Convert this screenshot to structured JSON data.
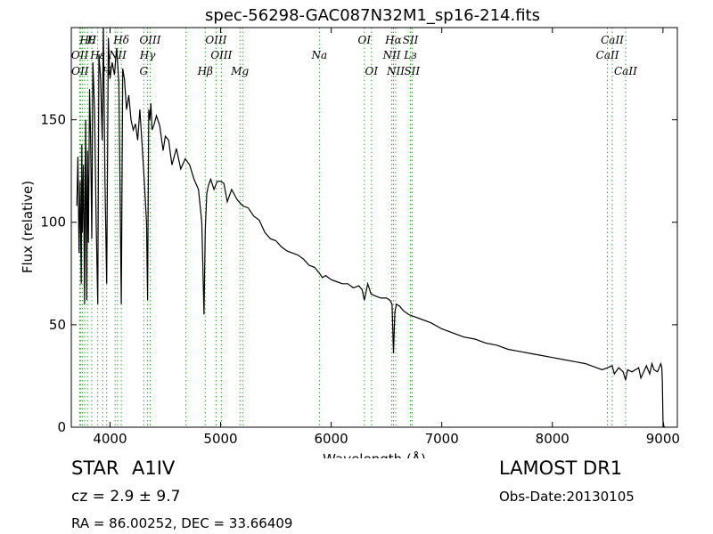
{
  "chart_data": {
    "type": "line",
    "title": "spec-56298-GAC087N32M1_sp16-214.fits",
    "xlabel": "Wavelength (Å)",
    "ylabel": "Flux (relative)",
    "xlim": [
      3650,
      9130
    ],
    "ylim": [
      0,
      195
    ],
    "xticks": [
      4000,
      5000,
      6000,
      7000,
      8000,
      9000
    ],
    "yticks": [
      0,
      50,
      100,
      150
    ],
    "grid": false,
    "line_color": "#000000",
    "marker_color": "#33aa33",
    "series": [
      {
        "x": [
          3700,
          3710,
          3720,
          3730,
          3740,
          3745,
          3750,
          3760,
          3770,
          3775,
          3780,
          3790,
          3797,
          3805,
          3815,
          3825,
          3835,
          3845,
          3860,
          3875,
          3889,
          3900,
          3915,
          3930,
          3940,
          3955,
          3970,
          3985,
          4000,
          4020,
          4040,
          4060,
          4080,
          4102,
          4115,
          4130,
          4150,
          4170,
          4190,
          4210,
          4230,
          4250,
          4270,
          4290,
          4310,
          4330,
          4340,
          4350,
          4360,
          4370,
          4380,
          4400,
          4420,
          4450,
          4480,
          4500,
          4530,
          4560,
          4600,
          4640,
          4680,
          4720,
          4760,
          4800,
          4830,
          4850,
          4861,
          4875,
          4890,
          4910,
          4940,
          4970,
          5000,
          5030,
          5060,
          5100,
          5150,
          5200,
          5250,
          5300,
          5350,
          5400,
          5450,
          5500,
          5550,
          5600,
          5650,
          5700,
          5750,
          5800,
          5850,
          5895,
          5920,
          5950,
          6000,
          6050,
          6100,
          6150,
          6200,
          6250,
          6280,
          6300,
          6330,
          6360,
          6400,
          6450,
          6500,
          6530,
          6550,
          6563,
          6575,
          6590,
          6620,
          6650,
          6700,
          6750,
          6800,
          6900,
          7000,
          7100,
          7200,
          7300,
          7400,
          7500,
          7600,
          7700,
          7800,
          7900,
          8000,
          8100,
          8200,
          8300,
          8400,
          8450,
          8500,
          8540,
          8560,
          8600,
          8640,
          8662,
          8680,
          8720,
          8780,
          8800,
          8850,
          8880,
          8900,
          8920,
          8950,
          8980,
          8990,
          8995,
          9000,
          9010,
          9020
        ],
        "y": [
          108,
          132,
          85,
          120,
          70,
          138,
          95,
          128,
          60,
          110,
          150,
          62,
          135,
          90,
          165,
          140,
          92,
          178,
          155,
          100,
          60,
          182,
          170,
          140,
          195,
          120,
          70,
          190,
          170,
          178,
          172,
          185,
          168,
          60,
          175,
          170,
          155,
          162,
          150,
          145,
          148,
          140,
          155,
          138,
          120,
          100,
          62,
          155,
          150,
          158,
          145,
          148,
          152,
          147,
          135,
          142,
          140,
          128,
          136,
          126,
          131,
          128,
          121,
          116,
          100,
          55,
          96,
          114,
          118,
          121,
          116,
          120,
          120,
          119,
          110,
          116,
          111,
          108,
          107,
          103,
          101,
          95,
          92,
          91,
          88,
          86,
          85,
          84,
          82,
          79,
          78,
          75,
          73,
          74,
          72,
          71,
          70,
          70,
          68,
          69,
          67,
          62,
          70,
          65,
          64,
          63,
          63,
          62,
          60,
          36,
          56,
          60,
          59,
          57,
          55,
          54,
          53,
          51,
          48,
          46,
          44,
          43,
          41,
          40,
          38,
          37,
          36,
          35,
          34,
          33,
          32,
          31,
          29,
          28,
          29,
          30,
          26,
          29,
          27,
          23,
          28,
          27,
          29,
          24,
          30,
          26,
          31,
          28,
          27,
          31,
          29,
          22,
          3,
          0,
          0
        ]
      }
    ],
    "lines": [
      {
        "name": "Hθ",
        "x": 3797,
        "row": 1
      },
      {
        "name": "H",
        "x": 3835,
        "row": 1
      },
      {
        "name": "Hδ",
        "x": 4102,
        "row": 1
      },
      {
        "name": "OIII",
        "x": 4363,
        "row": 1
      },
      {
        "name": "OIII",
        "x": 4959,
        "row": 1
      },
      {
        "name": "OI",
        "x": 6300,
        "row": 1
      },
      {
        "name": "Hα",
        "x": 6563,
        "row": 1
      },
      {
        "name": "SII",
        "x": 6717,
        "row": 1
      },
      {
        "name": "CaII",
        "x": 8542,
        "row": 1
      },
      {
        "name": "OII",
        "x": 3727,
        "row": 2
      },
      {
        "name": "Hε",
        "x": 3889,
        "row": 2
      },
      {
        "name": "NII",
        "x": 4068,
        "row": 2
      },
      {
        "name": "Hγ",
        "x": 4340,
        "row": 2
      },
      {
        "name": "OIII",
        "x": 5007,
        "row": 2
      },
      {
        "name": "Na",
        "x": 5893,
        "row": 2
      },
      {
        "name": "NII",
        "x": 6548,
        "row": 2
      },
      {
        "name": "Lз",
        "x": 6716,
        "row": 2
      },
      {
        "name": "CaII",
        "x": 8498,
        "row": 2
      },
      {
        "name": "OII",
        "x": 3729,
        "row": 3
      },
      {
        "name": "H",
        "x": 3970,
        "row": 3
      },
      {
        "name": "G",
        "x": 4305,
        "row": 3
      },
      {
        "name": "Hβ",
        "x": 4861,
        "row": 3
      },
      {
        "name": "Mg",
        "x": 5175,
        "row": 3
      },
      {
        "name": "OI",
        "x": 6364,
        "row": 3
      },
      {
        "name": "NII",
        "x": 6583,
        "row": 3
      },
      {
        "name": "SII",
        "x": 6731,
        "row": 3
      },
      {
        "name": "CaII",
        "x": 8662,
        "row": 3
      },
      {
        "name": "",
        "x": 3734,
        "row": 0
      },
      {
        "name": "",
        "x": 3750,
        "row": 0
      },
      {
        "name": "",
        "x": 3771,
        "row": 0
      },
      {
        "name": "",
        "x": 3934,
        "row": 0
      },
      {
        "name": "",
        "x": 4046,
        "row": 0
      },
      {
        "name": "",
        "x": 4686,
        "row": 0
      },
      {
        "name": "",
        "x": 5200,
        "row": 0
      }
    ]
  },
  "info": {
    "object_class": "STAR",
    "subclass": "A1IV",
    "redshift": "cz = 2.9 ± 9.7",
    "coords": "RA = 86.00252, DEC = 33.66409",
    "survey": "LAMOST DR1",
    "obs_date": "Obs-Date:20130105"
  }
}
